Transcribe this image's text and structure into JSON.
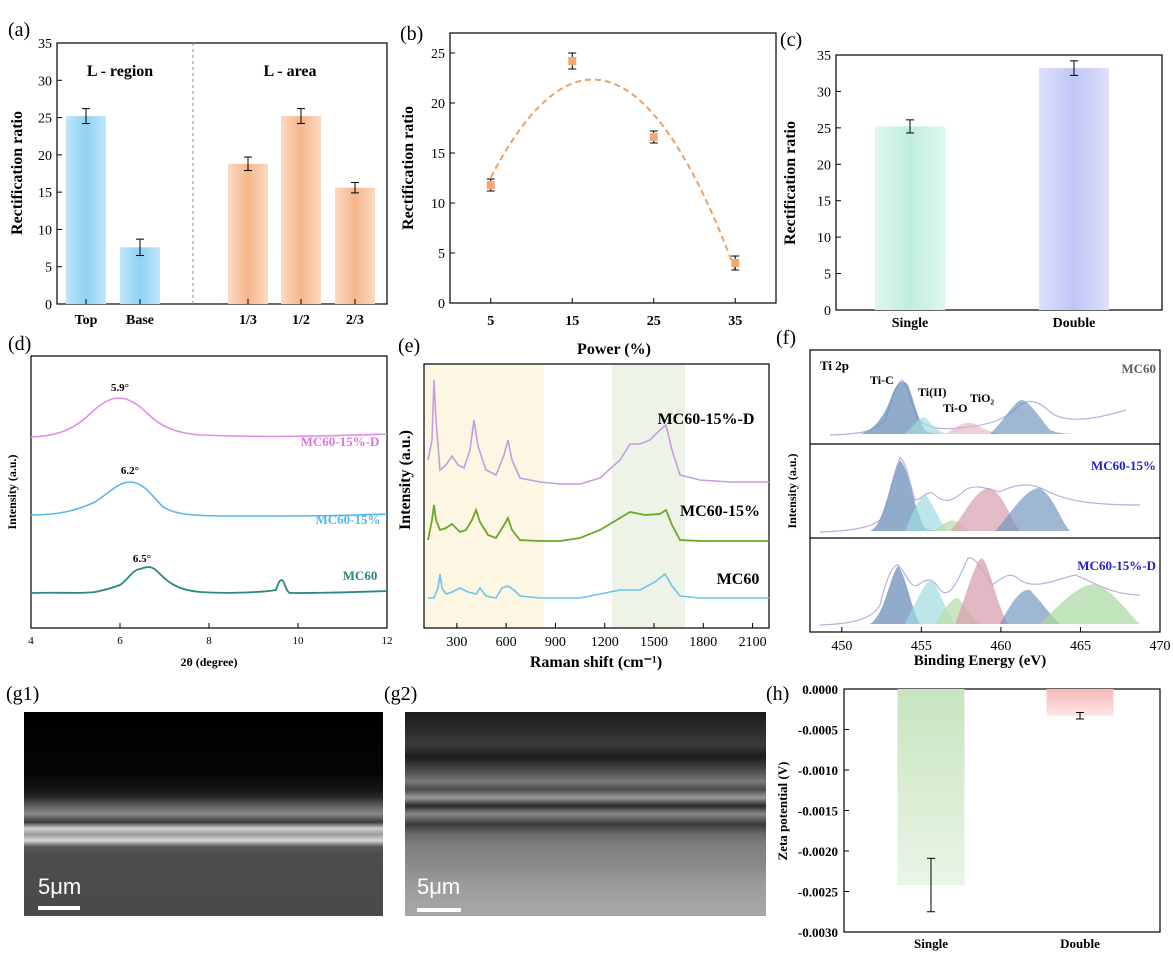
{
  "panels": {
    "a": {
      "label": "(a)",
      "ylabel": "Rectification ratio",
      "region1": "L - region",
      "region2": "L - area"
    },
    "b": {
      "label": "(b)",
      "ylabel": "Rectification ratio",
      "xlabel": "Power  (%)"
    },
    "c": {
      "label": "(c)",
      "ylabel": "Rectification ratio"
    },
    "d": {
      "label": "(d)",
      "ylabel": "Intensity (a.u.)",
      "xlabel": "2θ (degree)"
    },
    "e": {
      "label": "(e)",
      "ylabel": "Intensity (a.u.)",
      "xlabel": "Raman shift (cm⁻¹)"
    },
    "f": {
      "label": "(f)",
      "ylabel": "Intensity (a.u.)",
      "xlabel": "Binding Energy (eV)",
      "core": "Ti 2p",
      "peaks": [
        "Ti-C",
        "Ti(II)",
        "Ti-O",
        "TiO₂"
      ]
    },
    "g1": {
      "label": "(g1)",
      "scale": "5μm"
    },
    "g2": {
      "label": "(g2)",
      "scale": "5μm"
    },
    "h": {
      "label": "(h)",
      "ylabel": "Zeta potential (V)"
    }
  },
  "colors": {
    "blue_bar": "#9fd8f4",
    "orange_bar": "#f7c09c",
    "curve_orange": "#f0a060",
    "mint": "#c9f0e0",
    "lavender": "#c8ccf6",
    "pink": "#e070e0",
    "skyblue": "#55b8f0",
    "teal": "#2a8a80",
    "purple": "#c39ee0",
    "green": "#68a82a",
    "lightblue": "#6ec4ea",
    "label_blue": "#2020d0",
    "label_gray": "#606060"
  },
  "chart_data": [
    {
      "id": "a",
      "type": "bar",
      "categories": [
        "Top",
        "Base",
        "1/3",
        "1/2",
        "2/3"
      ],
      "values": [
        25.2,
        7.6,
        18.8,
        25.2,
        15.6
      ],
      "errors": [
        1.0,
        1.1,
        0.9,
        1.0,
        0.7
      ],
      "groups": [
        "L - region",
        "L - region",
        "L - area",
        "L - area",
        "L - area"
      ],
      "ylabel": "Rectification ratio",
      "ylim": [
        0,
        35
      ],
      "yticks": [
        0,
        5,
        10,
        15,
        20,
        25,
        30,
        35
      ]
    },
    {
      "id": "b",
      "type": "scatter",
      "x": [
        5,
        15,
        25,
        35
      ],
      "y": [
        11.8,
        24.2,
        16.6,
        4.0
      ],
      "errors": [
        0.6,
        0.8,
        0.6,
        0.7
      ],
      "fit": "dashed quadratic",
      "xlabel": "Power  (%)",
      "ylabel": "Rectification ratio",
      "xticks": [
        5,
        15,
        25,
        35
      ],
      "xlim": [
        0,
        40
      ],
      "ylim": [
        0,
        27
      ],
      "yticks": [
        0,
        5,
        10,
        15,
        20,
        25
      ]
    },
    {
      "id": "c",
      "type": "bar",
      "categories": [
        "Single",
        "Double"
      ],
      "values": [
        25.2,
        33.2
      ],
      "errors": [
        0.9,
        1.0
      ],
      "ylabel": "Rectification ratio",
      "ylim": [
        0,
        35
      ],
      "yticks": [
        0,
        5,
        10,
        15,
        20,
        25,
        30,
        35
      ]
    },
    {
      "id": "d",
      "type": "line",
      "xlabel": "2θ (degree)",
      "ylabel": "Intensity (a.u.)",
      "xlim": [
        4,
        12
      ],
      "xticks": [
        4,
        6,
        8,
        10,
        12
      ],
      "series": [
        {
          "name": "MC60-15%-D",
          "peak": "5.9°",
          "peak_x": 5.9
        },
        {
          "name": "MC60-15%",
          "peak": "6.2°",
          "peak_x": 6.2
        },
        {
          "name": "MC60",
          "peak": "6.5°",
          "peak_x": 6.5
        }
      ]
    },
    {
      "id": "e",
      "type": "line",
      "xlabel": "Raman shift (cm⁻¹)",
      "ylabel": "Intensity (a.u.)",
      "xlim": [
        100,
        2200
      ],
      "xticks": [
        300,
        600,
        900,
        1200,
        1500,
        1800,
        2100
      ],
      "series": [
        {
          "name": "MC60-15%-D"
        },
        {
          "name": "MC60-15%"
        },
        {
          "name": "MC60"
        }
      ],
      "shaded_ranges": [
        [
          150,
          750
        ],
        [
          1250,
          1700
        ]
      ]
    },
    {
      "id": "f",
      "type": "line",
      "xlabel": "Binding Energy (eV)",
      "ylabel": "Intensity (a.u.)",
      "xlim": [
        448,
        470
      ],
      "xticks": [
        450,
        455,
        460,
        465,
        470
      ],
      "series": [
        {
          "name": "MC60"
        },
        {
          "name": "MC60-15%"
        },
        {
          "name": "MC60-15%-D"
        }
      ]
    },
    {
      "id": "h",
      "type": "bar",
      "categories": [
        "Single",
        "Double"
      ],
      "values": [
        -0.00242,
        -0.00033
      ],
      "errors": [
        0.00033,
        4e-05
      ],
      "ylabel": "Zeta potential (V)",
      "ylim": [
        -0.003,
        0
      ],
      "yticks": [
        "0.0000",
        "-0.0005",
        "-0.0010",
        "-0.0015",
        "-0.0020",
        "-0.0025",
        "-0.0030"
      ]
    }
  ]
}
